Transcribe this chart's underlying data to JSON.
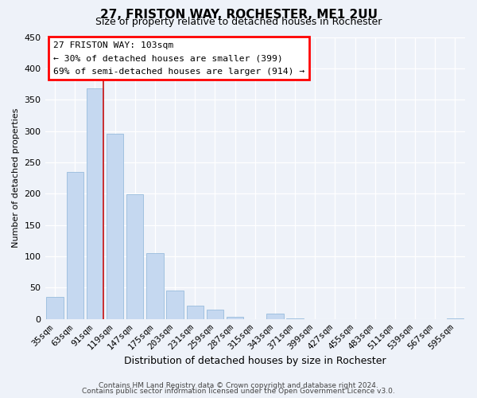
{
  "title": "27, FRISTON WAY, ROCHESTER, ME1 2UU",
  "subtitle": "Size of property relative to detached houses in Rochester",
  "xlabel": "Distribution of detached houses by size in Rochester",
  "ylabel": "Number of detached properties",
  "footer_line1": "Contains HM Land Registry data © Crown copyright and database right 2024.",
  "footer_line2": "Contains public sector information licensed under the Open Government Licence v3.0.",
  "categories": [
    "35sqm",
    "63sqm",
    "91sqm",
    "119sqm",
    "147sqm",
    "175sqm",
    "203sqm",
    "231sqm",
    "259sqm",
    "287sqm",
    "315sqm",
    "343sqm",
    "371sqm",
    "399sqm",
    "427sqm",
    "455sqm",
    "483sqm",
    "511sqm",
    "539sqm",
    "567sqm",
    "595sqm"
  ],
  "values": [
    36,
    235,
    368,
    296,
    199,
    105,
    45,
    22,
    15,
    4,
    0,
    9,
    1,
    0,
    0,
    0,
    0,
    0,
    0,
    0,
    1
  ],
  "bar_color": "#c5d8f0",
  "red_line_bar_index": 2,
  "ylim": [
    0,
    450
  ],
  "yticks": [
    0,
    50,
    100,
    150,
    200,
    250,
    300,
    350,
    400,
    450
  ],
  "annotation_title": "27 FRISTON WAY: 103sqm",
  "annotation_line1": "← 30% of detached houses are smaller (399)",
  "annotation_line2": "69% of semi-detached houses are larger (914) →",
  "background_color": "#eef2f9",
  "grid_color": "#ffffff",
  "title_fontsize": 11,
  "subtitle_fontsize": 9,
  "ylabel_fontsize": 8,
  "xlabel_fontsize": 9
}
